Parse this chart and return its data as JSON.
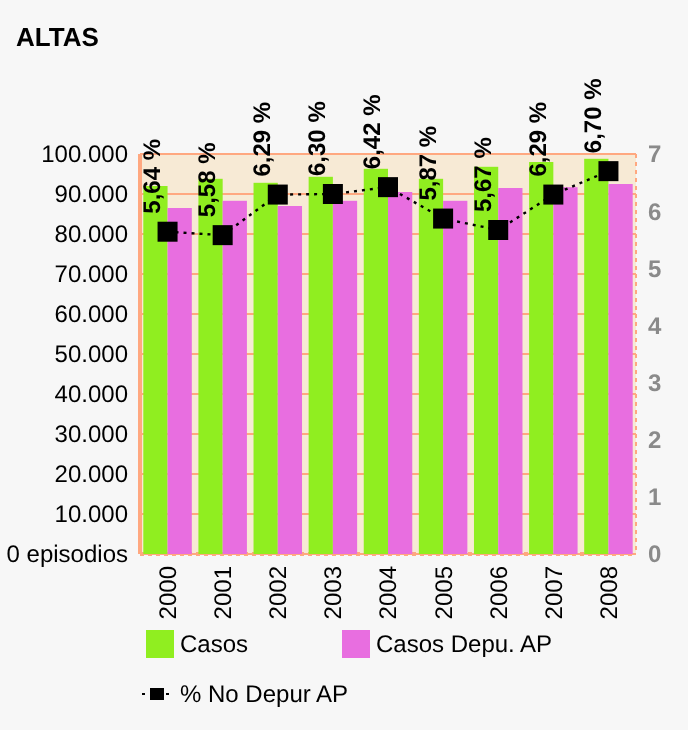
{
  "chart_data": {
    "type": "bar",
    "title": "ALTAS",
    "categories": [
      "2000",
      "2001",
      "2002",
      "2003",
      "2004",
      "2005",
      "2006",
      "2007",
      "2008"
    ],
    "series": [
      {
        "name": "Casos",
        "color": "#90ee20",
        "values": [
          92000,
          93800,
          92800,
          94300,
          96300,
          93800,
          96800,
          98000,
          98800
        ]
      },
      {
        "name": "Casos Depu. AP",
        "color": "#e86ee0",
        "values": [
          86500,
          88300,
          87000,
          88300,
          90500,
          88300,
          91500,
          91700,
          92500
        ]
      },
      {
        "name": "% No Depur AP",
        "type": "line",
        "axis": "y2",
        "color": "#000000",
        "line_style": "dotted",
        "marker": "square",
        "values": [
          5.64,
          5.58,
          6.29,
          6.3,
          6.42,
          5.87,
          5.67,
          6.29,
          6.7
        ],
        "value_labels": [
          "5,64 %",
          "5,58 %",
          "6,29 %",
          "6,30 %",
          "6,42 %",
          "5,87 %",
          "5,67 %",
          "6,29 %",
          "6,70 %"
        ]
      }
    ],
    "ylim": [
      0,
      100000
    ],
    "yticks": [
      {
        "value": 0,
        "label": "0 episodios"
      },
      {
        "value": 10000,
        "label": "10.000"
      },
      {
        "value": 20000,
        "label": "20.000"
      },
      {
        "value": 30000,
        "label": "30.000"
      },
      {
        "value": 40000,
        "label": "40.000"
      },
      {
        "value": 50000,
        "label": "50.000"
      },
      {
        "value": 60000,
        "label": "60.000"
      },
      {
        "value": 70000,
        "label": "70.000"
      },
      {
        "value": 80000,
        "label": "80.000"
      },
      {
        "value": 90000,
        "label": "90.000"
      },
      {
        "value": 100000,
        "label": "100.000"
      }
    ],
    "y2lim": [
      0,
      7
    ],
    "y2ticks": [
      0,
      1,
      2,
      3,
      4,
      5,
      6,
      7
    ],
    "bands": [
      {
        "axis": "y",
        "from": 0,
        "to": 100000,
        "color": "#f7ead5"
      }
    ],
    "grid": "y",
    "legend": "bottom"
  }
}
